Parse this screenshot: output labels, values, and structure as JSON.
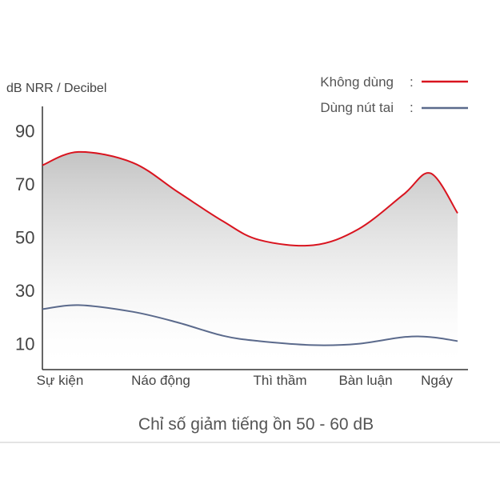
{
  "chart_data": {
    "type": "line",
    "title": "Chỉ số giảm tiếng ồn 50 - 60 dB",
    "ylabel": "dB NRR / Decibel",
    "xlabel": "",
    "ylim": [
      0,
      100
    ],
    "yticks": [
      10,
      30,
      50,
      70,
      90
    ],
    "grid": false,
    "legend_position": "top-right",
    "legend_separator": ":",
    "categories": [
      "Sự kiện",
      "Náo động",
      "Thì thầm",
      "Bàn luận",
      "Ngáy"
    ],
    "series": [
      {
        "name": "Không dùng",
        "color": "#d9141f",
        "x": [
          0,
          0.4,
          1,
          1.5,
          2,
          2.4,
          3,
          3.5,
          4,
          4.3,
          4.6
        ],
        "values": [
          77,
          82,
          78,
          67,
          56,
          49,
          47,
          53,
          66,
          74,
          59
        ]
      },
      {
        "name": "Dùng nút tai",
        "color": "#5b6a8c",
        "x": [
          0,
          0.4,
          1,
          1.5,
          2,
          2.4,
          3,
          3.5,
          4,
          4.3,
          4.6
        ],
        "values": [
          23,
          24.5,
          22,
          18,
          13,
          11,
          9.5,
          10,
          12.5,
          12.5,
          11
        ]
      }
    ]
  }
}
